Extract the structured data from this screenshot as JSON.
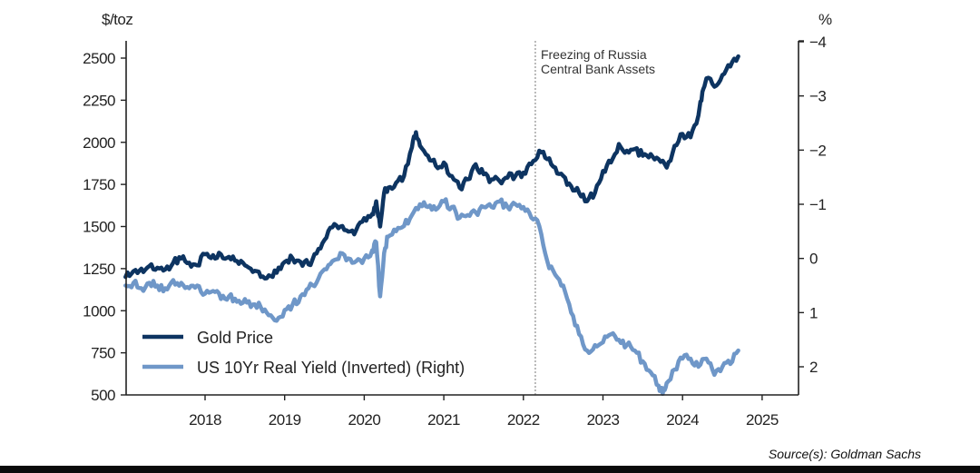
{
  "chart_data": {
    "type": "line",
    "title": "",
    "left_axis": {
      "unit_label": "$/toz",
      "ticks": [
        500,
        750,
        1000,
        1250,
        1500,
        1750,
        2000,
        2250,
        2500
      ],
      "range": [
        500,
        2600
      ]
    },
    "right_axis": {
      "unit_label": "%",
      "ticks": [
        -4,
        -3,
        -2,
        -1,
        0,
        1,
        2
      ],
      "tick_labels": [
        "−4",
        "−3",
        "−2",
        "−1",
        "0",
        "1",
        "2"
      ],
      "range": [
        -4,
        2.5
      ],
      "inverted": true
    },
    "x_axis": {
      "ticks": [
        2018,
        2019,
        2020,
        2021,
        2022,
        2023,
        2024,
        2025
      ],
      "range": [
        2017.0,
        2025.5
      ]
    },
    "annotation": {
      "x": 2022.15,
      "line1": "Freezing of Russia",
      "line2": "Central Bank Assets"
    },
    "source": "Source(s): Goldman Sachs",
    "colors": {
      "gold": "#0d3461",
      "yield": "#6f97c8",
      "axis": "#222222"
    },
    "series": [
      {
        "name": "Gold Price",
        "axis": "left",
        "x": [
          2017.0,
          2017.1,
          2017.2,
          2017.3,
          2017.4,
          2017.5,
          2017.6,
          2017.7,
          2017.8,
          2017.9,
          2018.0,
          2018.1,
          2018.2,
          2018.3,
          2018.4,
          2018.5,
          2018.6,
          2018.7,
          2018.8,
          2018.9,
          2019.0,
          2019.1,
          2019.2,
          2019.3,
          2019.4,
          2019.5,
          2019.6,
          2019.7,
          2019.8,
          2019.9,
          2020.0,
          2020.1,
          2020.15,
          2020.2,
          2020.25,
          2020.3,
          2020.4,
          2020.5,
          2020.6,
          2020.65,
          2020.7,
          2020.8,
          2020.9,
          2021.0,
          2021.1,
          2021.2,
          2021.3,
          2021.4,
          2021.5,
          2021.6,
          2021.7,
          2021.8,
          2021.9,
          2022.0,
          2022.1,
          2022.2,
          2022.3,
          2022.4,
          2022.5,
          2022.6,
          2022.7,
          2022.8,
          2022.9,
          2023.0,
          2023.1,
          2023.2,
          2023.3,
          2023.4,
          2023.5,
          2023.6,
          2023.7,
          2023.8,
          2023.9,
          2024.0,
          2024.1,
          2024.2,
          2024.25,
          2024.3,
          2024.4,
          2024.5,
          2024.6,
          2024.7
        ],
        "y": [
          1200,
          1235,
          1250,
          1265,
          1255,
          1245,
          1285,
          1310,
          1285,
          1270,
          1335,
          1330,
          1335,
          1320,
          1295,
          1270,
          1230,
          1200,
          1210,
          1225,
          1290,
          1310,
          1290,
          1275,
          1340,
          1420,
          1495,
          1500,
          1470,
          1480,
          1550,
          1575,
          1650,
          1500,
          1700,
          1730,
          1760,
          1800,
          1970,
          2060,
          1980,
          1920,
          1860,
          1880,
          1800,
          1730,
          1780,
          1870,
          1810,
          1780,
          1770,
          1790,
          1800,
          1820,
          1870,
          1950,
          1900,
          1850,
          1800,
          1740,
          1700,
          1650,
          1700,
          1830,
          1880,
          1990,
          1950,
          1960,
          1920,
          1930,
          1900,
          1850,
          1980,
          2050,
          2030,
          2160,
          2300,
          2380,
          2330,
          2400,
          2450,
          2510
        ]
      },
      {
        "name": "US 10Yr Real Yield (Inverted) (Right)",
        "axis": "right",
        "x": [
          2017.0,
          2017.1,
          2017.2,
          2017.3,
          2017.4,
          2017.5,
          2017.6,
          2017.7,
          2017.8,
          2017.9,
          2018.0,
          2018.1,
          2018.2,
          2018.3,
          2018.4,
          2018.5,
          2018.6,
          2018.7,
          2018.8,
          2018.9,
          2019.0,
          2019.1,
          2019.2,
          2019.3,
          2019.4,
          2019.5,
          2019.6,
          2019.7,
          2019.8,
          2019.9,
          2020.0,
          2020.1,
          2020.15,
          2020.2,
          2020.25,
          2020.3,
          2020.4,
          2020.5,
          2020.6,
          2020.7,
          2020.8,
          2020.9,
          2021.0,
          2021.1,
          2021.2,
          2021.3,
          2021.4,
          2021.5,
          2021.6,
          2021.7,
          2021.8,
          2021.9,
          2022.0,
          2022.1,
          2022.2,
          2022.3,
          2022.4,
          2022.5,
          2022.6,
          2022.7,
          2022.8,
          2022.9,
          2023.0,
          2023.1,
          2023.2,
          2023.3,
          2023.4,
          2023.5,
          2023.6,
          2023.7,
          2023.75,
          2023.8,
          2023.9,
          2024.0,
          2024.1,
          2024.2,
          2024.3,
          2024.4,
          2024.5,
          2024.6,
          2024.7
        ],
        "y": [
          0.5,
          0.45,
          0.55,
          0.45,
          0.5,
          0.55,
          0.4,
          0.45,
          0.55,
          0.5,
          0.65,
          0.6,
          0.75,
          0.7,
          0.8,
          0.75,
          0.85,
          0.9,
          1.05,
          1.15,
          0.95,
          0.85,
          0.7,
          0.55,
          0.45,
          0.2,
          0.05,
          -0.1,
          0.0,
          0.05,
          0.0,
          -0.15,
          -0.3,
          0.7,
          -0.1,
          -0.4,
          -0.5,
          -0.6,
          -0.8,
          -1.0,
          -0.95,
          -0.9,
          -1.05,
          -0.95,
          -0.75,
          -0.8,
          -0.85,
          -0.95,
          -0.95,
          -1.05,
          -0.95,
          -1.0,
          -0.95,
          -0.75,
          -0.6,
          0.05,
          0.3,
          0.5,
          1.0,
          1.4,
          1.7,
          1.6,
          1.55,
          1.4,
          1.5,
          1.6,
          1.7,
          1.9,
          2.1,
          2.35,
          2.5,
          2.3,
          2.05,
          1.85,
          1.85,
          2.0,
          1.85,
          2.15,
          2.0,
          1.95,
          1.7
        ]
      }
    ]
  }
}
